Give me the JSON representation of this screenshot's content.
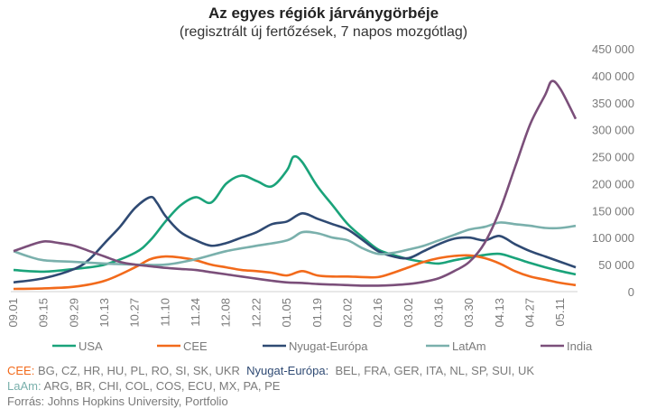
{
  "chart_data": {
    "type": "line",
    "title": "Az egyes régiók járványgörbéje",
    "subtitle": "(regisztrált új fertőzések, 7 napos mozgótlag)",
    "ylim": [
      0,
      450000
    ],
    "y_ticks": [
      "0",
      "50 000",
      "100 000",
      "150 000",
      "200 000",
      "250 000",
      "300 000",
      "350 000",
      "400 000",
      "450 000"
    ],
    "x_tick_labels": [
      "09.01",
      "09.15",
      "09.29",
      "10.13",
      "10.27",
      "11.10",
      "11.24",
      "12.08",
      "12.22",
      "01.05",
      "01.19",
      "02.02",
      "02.16",
      "03.02",
      "03.16",
      "03.30",
      "04.13",
      "04.27",
      "05.11"
    ],
    "grid": false,
    "legend_position": "bottom",
    "series": [
      {
        "name": "USA",
        "color": "#1aa37a",
        "x": [
          "09.01",
          "09.15",
          "09.29",
          "10.13",
          "10.27",
          "11.03",
          "11.10",
          "11.17",
          "11.24",
          "12.01",
          "12.08",
          "12.15",
          "12.22",
          "12.29",
          "01.05",
          "01.08",
          "01.12",
          "01.19",
          "01.26",
          "02.02",
          "02.09",
          "02.16",
          "02.23",
          "03.02",
          "03.09",
          "03.16",
          "03.23",
          "03.30",
          "04.06",
          "04.13",
          "04.20",
          "04.27",
          "05.04",
          "05.11",
          "05.18"
        ],
        "values": [
          40000,
          37000,
          42000,
          50000,
          72000,
          95000,
          130000,
          160000,
          175000,
          165000,
          200000,
          215000,
          205000,
          195000,
          225000,
          250000,
          240000,
          195000,
          160000,
          125000,
          100000,
          78000,
          68000,
          60000,
          55000,
          52000,
          58000,
          63000,
          68000,
          70000,
          62000,
          53000,
          45000,
          38000,
          32000
        ]
      },
      {
        "name": "CEE",
        "color": "#f26a1b",
        "x": [
          "09.01",
          "09.15",
          "09.29",
          "10.13",
          "10.27",
          "11.03",
          "11.10",
          "11.17",
          "11.24",
          "12.01",
          "12.08",
          "12.15",
          "12.22",
          "12.29",
          "01.05",
          "01.12",
          "01.19",
          "01.26",
          "02.02",
          "02.09",
          "02.16",
          "02.23",
          "03.02",
          "03.09",
          "03.16",
          "03.23",
          "03.30",
          "04.06",
          "04.13",
          "04.20",
          "04.27",
          "05.04",
          "05.11",
          "05.18"
        ],
        "values": [
          5000,
          6000,
          9000,
          20000,
          45000,
          60000,
          65000,
          63000,
          58000,
          50000,
          45000,
          40000,
          38000,
          35000,
          30000,
          38000,
          30000,
          28000,
          28000,
          27000,
          27000,
          35000,
          45000,
          55000,
          62000,
          66000,
          67000,
          62000,
          52000,
          38000,
          28000,
          22000,
          16000,
          12000
        ]
      },
      {
        "name": "Nyugat-Európa",
        "color": "#2f4a73",
        "x": [
          "09.01",
          "09.15",
          "09.29",
          "10.06",
          "10.13",
          "10.20",
          "10.27",
          "11.03",
          "11.06",
          "11.10",
          "11.17",
          "11.24",
          "12.01",
          "12.08",
          "12.15",
          "12.22",
          "12.29",
          "01.05",
          "01.12",
          "01.19",
          "01.26",
          "02.02",
          "02.09",
          "02.16",
          "02.23",
          "03.02",
          "03.09",
          "03.16",
          "03.23",
          "03.30",
          "04.06",
          "04.13",
          "04.20",
          "04.27",
          "05.04",
          "05.11",
          "05.18"
        ],
        "values": [
          17000,
          25000,
          42000,
          60000,
          90000,
          120000,
          155000,
          175000,
          165000,
          140000,
          110000,
          95000,
          85000,
          90000,
          100000,
          110000,
          125000,
          130000,
          145000,
          135000,
          125000,
          115000,
          95000,
          75000,
          65000,
          62000,
          75000,
          88000,
          98000,
          100000,
          95000,
          103000,
          88000,
          75000,
          65000,
          55000,
          45000
        ]
      },
      {
        "name": "LatAm",
        "color": "#7ab0ac",
        "x": [
          "09.01",
          "09.08",
          "09.15",
          "09.29",
          "10.13",
          "10.27",
          "11.10",
          "11.24",
          "12.08",
          "12.22",
          "01.05",
          "01.12",
          "01.19",
          "01.26",
          "02.02",
          "02.09",
          "02.16",
          "02.23",
          "03.02",
          "03.09",
          "03.16",
          "03.23",
          "03.30",
          "04.06",
          "04.13",
          "04.20",
          "04.27",
          "05.04",
          "05.11",
          "05.18"
        ],
        "values": [
          75000,
          65000,
          58000,
          55000,
          52000,
          50000,
          50000,
          60000,
          75000,
          85000,
          95000,
          110000,
          108000,
          100000,
          95000,
          80000,
          70000,
          72000,
          78000,
          85000,
          95000,
          105000,
          115000,
          120000,
          128000,
          125000,
          122000,
          118000,
          118000,
          122000
        ]
      },
      {
        "name": "India",
        "color": "#7b4f7a",
        "x": [
          "09.01",
          "09.08",
          "09.15",
          "09.22",
          "09.29",
          "10.06",
          "10.13",
          "10.20",
          "10.27",
          "11.03",
          "11.10",
          "11.17",
          "11.24",
          "12.01",
          "12.08",
          "12.15",
          "12.22",
          "12.29",
          "01.05",
          "01.12",
          "01.19",
          "01.26",
          "02.02",
          "02.09",
          "02.16",
          "02.23",
          "03.02",
          "03.09",
          "03.16",
          "03.23",
          "03.30",
          "04.06",
          "04.13",
          "04.20",
          "04.27",
          "05.04",
          "05.07",
          "05.11",
          "05.18"
        ],
        "values": [
          75000,
          85000,
          93000,
          90000,
          85000,
          75000,
          65000,
          55000,
          50000,
          47000,
          44000,
          42000,
          40000,
          36000,
          32000,
          28000,
          24000,
          20000,
          17000,
          16000,
          14000,
          13000,
          12000,
          11000,
          11000,
          12000,
          14000,
          18000,
          25000,
          38000,
          55000,
          90000,
          150000,
          230000,
          310000,
          365000,
          390000,
          375000,
          320000
        ]
      }
    ]
  },
  "notes": {
    "cee_key": "CEE:",
    "cee_list": "BG, CZ, HR, HU, PL, RO, SI, SK, UKR",
    "we_key": "Nyugat-Európa:",
    "we_list": "BEL, FRA, GER, ITA, NL, SP, SUI, UK",
    "latam_key": "LaAm:",
    "latam_list": "ARG, BR, CHI, COL, COS, ECU, MX, PA, PE",
    "source": "Forrás: Johns Hopkins University, Portfolio"
  }
}
